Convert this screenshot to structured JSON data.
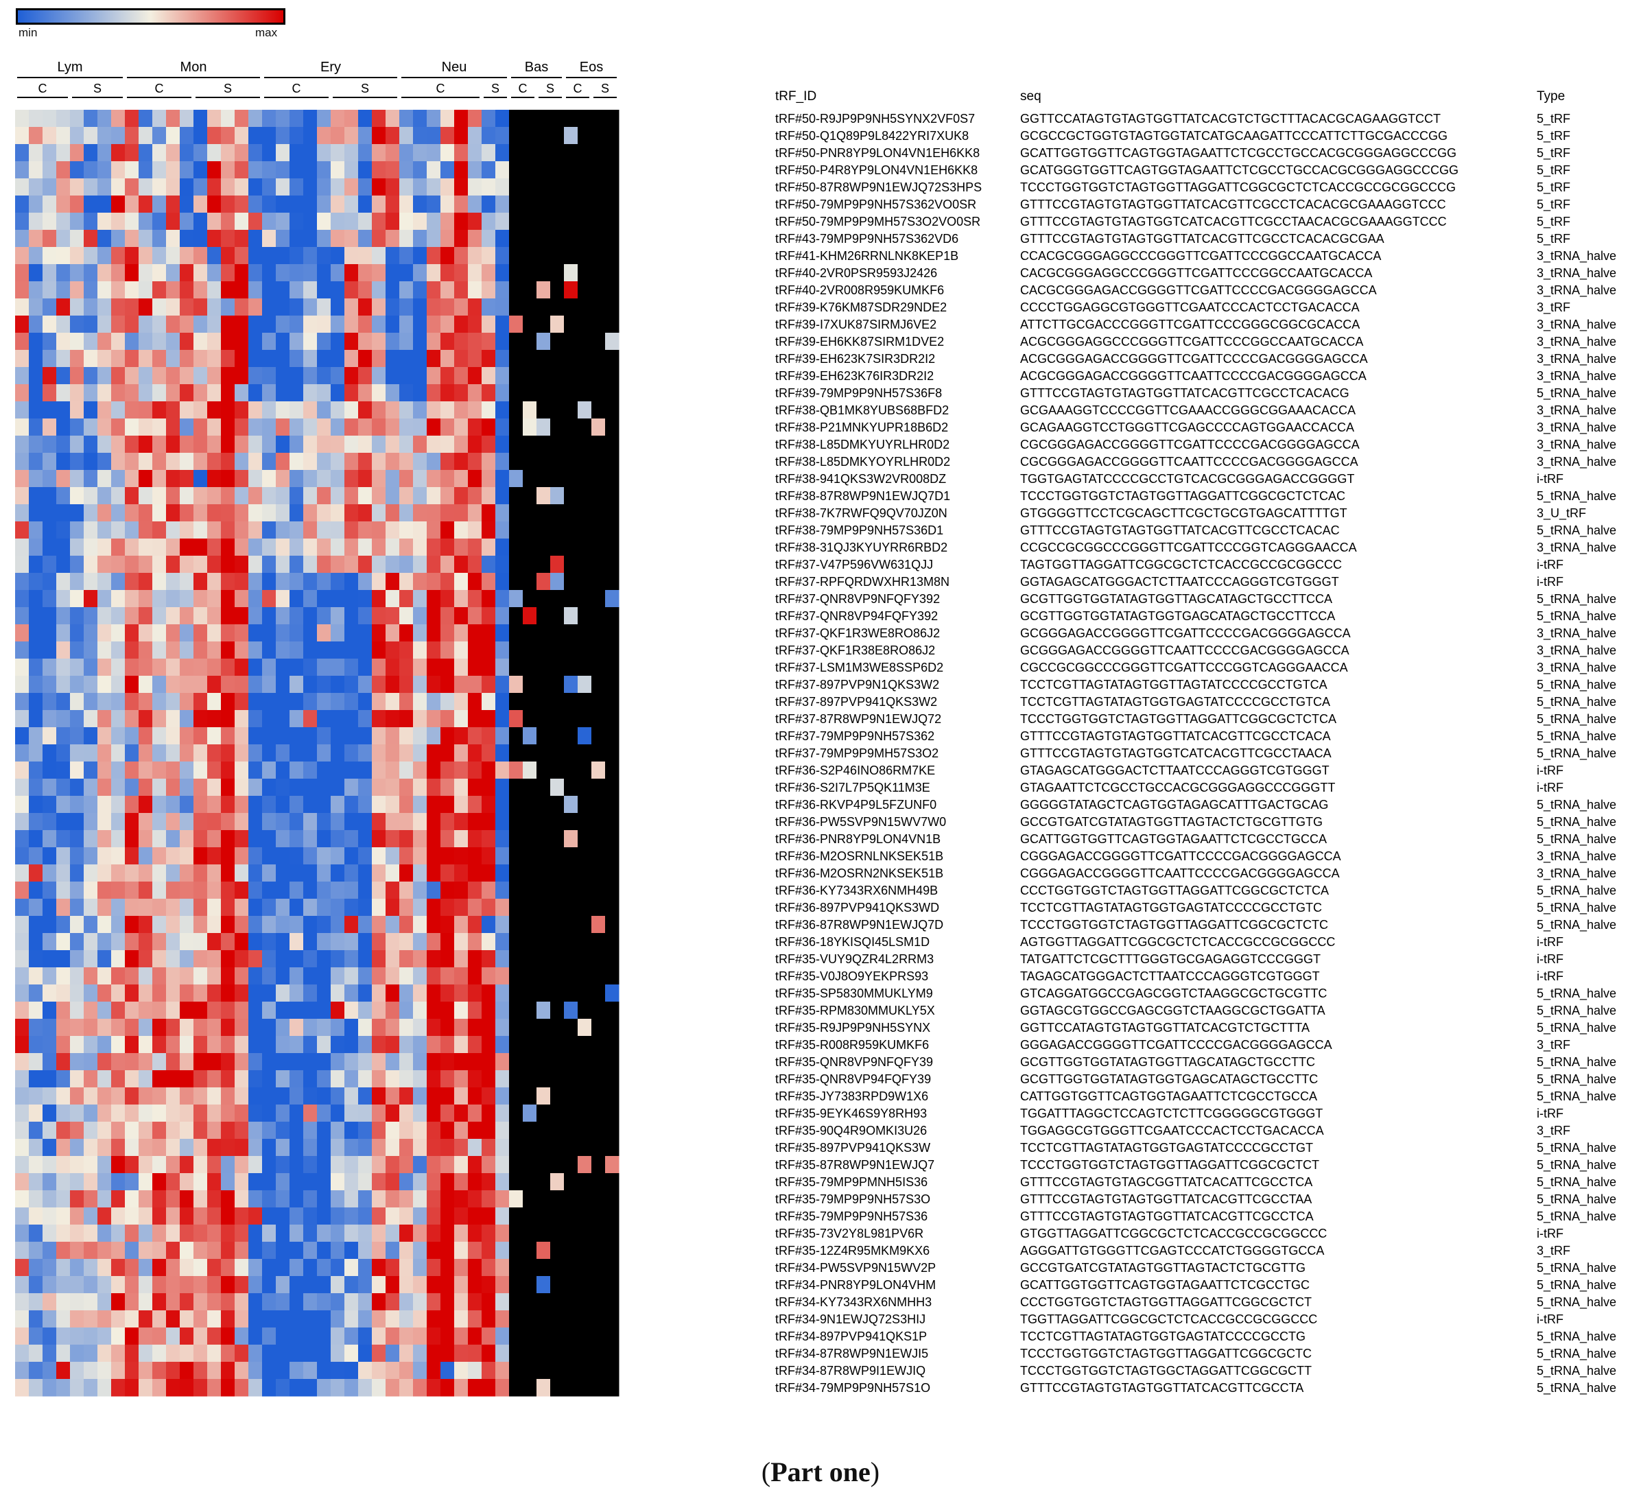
{
  "legend": {
    "min_label": "min",
    "max_label": "max",
    "colors": [
      "#1f5fd6",
      "#f3efe0",
      "#d80000"
    ]
  },
  "caption": {
    "paren_open": "(",
    "text": "Part one",
    "paren_close": ")"
  },
  "chart_data": {
    "type": "heatmap",
    "title": "",
    "color_scale": [
      "min",
      "max"
    ],
    "cell_types": [
      {
        "name": "Lym",
        "groups": [
          {
            "label": "C",
            "n": 4
          },
          {
            "label": "S",
            "n": 4
          }
        ]
      },
      {
        "name": "Mon",
        "groups": [
          {
            "label": "C",
            "n": 5
          },
          {
            "label": "S",
            "n": 5
          }
        ]
      },
      {
        "name": "Ery",
        "groups": [
          {
            "label": "C",
            "n": 5
          },
          {
            "label": "S",
            "n": 5
          }
        ]
      },
      {
        "name": "Neu",
        "groups": [
          {
            "label": "C",
            "n": 6
          },
          {
            "label": "S",
            "n": 2
          }
        ]
      },
      {
        "name": "Bas",
        "groups": [
          {
            "label": "C",
            "n": 2
          },
          {
            "label": "S",
            "n": 2
          }
        ]
      },
      {
        "name": "Eos",
        "groups": [
          {
            "label": "C",
            "n": 2
          },
          {
            "label": "S",
            "n": 2
          }
        ]
      }
    ],
    "columns": {
      "tRF_ID": "tRF_ID",
      "seq": "seq",
      "Type": "Type"
    },
    "rows": [
      {
        "id": "tRF#50-R9JP9P9NH5SYNX2VF0S7",
        "seq": "GGTTCCATAGTGTAGTGGTTATCACGTCTGCTTTACACGCAGAAGGTCCT",
        "type": "5_tRF"
      },
      {
        "id": "tRF#50-Q1Q89P9L8422YRI7XUK8",
        "seq": "GCGCCGCTGGTGTAGTGGTATCATGCAAGATTCCCATTCTTGCGACCCGG",
        "type": "5_tRF"
      },
      {
        "id": "tRF#50-PNR8YP9LON4VN1EH6KK8",
        "seq": "GCATTGGTGGTTCAGTGGTAGAATTCTCGCCTGCCACGCGGGAGGCCCGG",
        "type": "5_tRF"
      },
      {
        "id": "tRF#50-P4R8YP9LON4VN1EH6KK8",
        "seq": "GCATGGGTGGTTCAGTGGTAGAATTCTCGCCTGCCACGCGGGAGGCCCGG",
        "type": "5_tRF"
      },
      {
        "id": "tRF#50-87R8WP9N1EWJQ72S3HPS",
        "seq": "TCCCTGGTGGTCTAGTGGTTAGGATTCGGCGCTCTCACCGCCGCGGCCCG",
        "type": "5_tRF"
      },
      {
        "id": "tRF#50-79MP9P9NH57S362VO0SR",
        "seq": "GTTTCCGTAGTGTAGTGGTTATCACGTTCGCCTCACACGCGAAAGGTCCC",
        "type": "5_tRF"
      },
      {
        "id": "tRF#50-79MP9P9MH57S3O2VO0SR",
        "seq": "GTTTCCGTAGTGTAGTGGTCATCACGTTCGCCTAACACGCGAAAGGTCCC",
        "type": "5_tRF"
      },
      {
        "id": "tRF#43-79MP9P9NH57S362VD6",
        "seq": "GTTTCCGTAGTGTAGTGGTTATCACGTTCGCCTCACACGCGAA",
        "type": "5_tRF"
      },
      {
        "id": "tRF#41-KHM26RRNLNK8KEP1B",
        "seq": "CCACGCGGGAGGCCCGGGTTCGATTCCCGGCCAATGCACCA",
        "type": "3_tRNA_halve"
      },
      {
        "id": "tRF#40-2VR0PSR9593J2426",
        "seq": "CACGCGGGAGGCCCGGGTTCGATTCCCGGCCAATGCACCA",
        "type": "3_tRNA_halve"
      },
      {
        "id": "tRF#40-2VR008R959KUMKF6",
        "seq": "CACGCGGGAGACCGGGGTTCGATTCCCCGACGGGGAGCCA",
        "type": "3_tRNA_halve"
      },
      {
        "id": "tRF#39-K76KM87SDR29NDE2",
        "seq": "CCCCTGGAGGCGTGGGTTCGAATCCCACTCCTGACACCA",
        "type": "3_tRF"
      },
      {
        "id": "tRF#39-I7XUK87SIRMJ6VE2",
        "seq": "ATTCTTGCGACCCGGGTTCGATTCCCGGGCGGCGCACCA",
        "type": "3_tRNA_halve"
      },
      {
        "id": "tRF#39-EH6KK87SIRM1DVE2",
        "seq": "ACGCGGGAGGCCCGGGTTCGATTCCCGGCCAATGCACCA",
        "type": "3_tRNA_halve"
      },
      {
        "id": "tRF#39-EH623K7SIR3DR2I2",
        "seq": "ACGCGGGAGACCGGGGTTCGATTCCCCGACGGGGAGCCA",
        "type": "3_tRNA_halve"
      },
      {
        "id": "tRF#39-EH623K76IR3DR2I2",
        "seq": "ACGCGGGAGACCGGGGTTCAATTCCCCGACGGGGAGCCA",
        "type": "3_tRNA_halve"
      },
      {
        "id": "tRF#39-79MP9P9NH57S36F8",
        "seq": "GTTTCCGTAGTGTAGTGGTTATCACGTTCGCCTCACACG",
        "type": "5_tRNA_halve"
      },
      {
        "id": "tRF#38-QB1MK8YUBS68BFD2",
        "seq": "GCGAAAGGTCCCCGGTTCGAAACCGGGCGGAAACACCA",
        "type": "3_tRNA_halve"
      },
      {
        "id": "tRF#38-P21MNKYUPR18B6D2",
        "seq": "GCAGAAGGTCCTGGGTTCGAGCCCCAGTGGAACCACCA",
        "type": "3_tRNA_halve"
      },
      {
        "id": "tRF#38-L85DMKYUYRLHR0D2",
        "seq": "CGCGGGAGACCGGGGTTCGATTCCCCGACGGGGAGCCA",
        "type": "3_tRNA_halve"
      },
      {
        "id": "tRF#38-L85DMKYOYRLHR0D2",
        "seq": "CGCGGGAGACCGGGGTTCAATTCCCCGACGGGGAGCCA",
        "type": "3_tRNA_halve"
      },
      {
        "id": "tRF#38-941QKS3W2VR008DZ",
        "seq": "TGGTGAGTATCCCCGCCTGTCACGCGGGAGACCGGGGT",
        "type": "i-tRF"
      },
      {
        "id": "tRF#38-87R8WP9N1EWJQ7D1",
        "seq": "TCCCTGGTGGTCTAGTGGTTAGGATTCGGCGCTCTCAC",
        "type": "5_tRNA_halve"
      },
      {
        "id": "tRF#38-7K7RWFQ9QV70JZ0N",
        "seq": "GTGGGGTTCCTCGCAGCTTCGCTGCGTGAGCATTTTGT",
        "type": "3_U_tRF"
      },
      {
        "id": "tRF#38-79MP9P9NH57S36D1",
        "seq": "GTTTCCGTAGTGTAGTGGTTATCACGTTCGCCTCACAC",
        "type": "5_tRNA_halve"
      },
      {
        "id": "tRF#38-31QJ3KYUYRR6RBD2",
        "seq": "CCGCCGCGGCCCGGGTTCGATTCCCGGTCAGGGAACCA",
        "type": "3_tRNA_halve"
      },
      {
        "id": "tRF#37-V47P596VW631QJJ",
        "seq": "TAGTGGTTAGGATTCGGCGCTCTCACCGCCGCGGCCC",
        "type": "i-tRF"
      },
      {
        "id": "tRF#37-RPFQRDWXHR13M8N",
        "seq": "GGTAGAGCATGGGACTCTTAATCCCAGGGTCGTGGGT",
        "type": "i-tRF"
      },
      {
        "id": "tRF#37-QNR8VP9NFQFY392",
        "seq": "GCGTTGGTGGTATAGTGGTTAGCATAGCTGCCTTCCA",
        "type": "5_tRNA_halve"
      },
      {
        "id": "tRF#37-QNR8VP94FQFY392",
        "seq": "GCGTTGGTGGTATAGTGGTGAGCATAGCTGCCTTCCA",
        "type": "5_tRNA_halve"
      },
      {
        "id": "tRF#37-QKF1R3WE8RO86J2",
        "seq": "GCGGGAGACCGGGGTTCGATTCCCCGACGGGGAGCCA",
        "type": "3_tRNA_halve"
      },
      {
        "id": "tRF#37-QKF1R38E8RO86J2",
        "seq": "GCGGGAGACCGGGGTTCAATTCCCCGACGGGGAGCCA",
        "type": "3_tRNA_halve"
      },
      {
        "id": "tRF#37-LSM1M3WE8SSP6D2",
        "seq": "CGCCGCGGCCCGGGTTCGATTCCCGGTCAGGGAACCA",
        "type": "3_tRNA_halve"
      },
      {
        "id": "tRF#37-897PVP9N1QKS3W2",
        "seq": "TCCTCGTTAGTATAGTGGTTAGTATCCCCGCCTGTCA",
        "type": "5_tRNA_halve"
      },
      {
        "id": "tRF#37-897PVP941QKS3W2",
        "seq": "TCCTCGTTAGTATAGTGGTGAGTATCCCCGCCTGTCA",
        "type": "5_tRNA_halve"
      },
      {
        "id": "tRF#37-87R8WP9N1EWJQ72",
        "seq": "TCCCTGGTGGTCTAGTGGTTAGGATTCGGCGCTCTCA",
        "type": "5_tRNA_halve"
      },
      {
        "id": "tRF#37-79MP9P9NH57S362",
        "seq": "GTTTCCGTAGTGTAGTGGTTATCACGTTCGCCTCACA",
        "type": "5_tRNA_halve"
      },
      {
        "id": "tRF#37-79MP9P9MH57S3O2",
        "seq": "GTTTCCGTAGTGTAGTGGTCATCACGTTCGCCTAACA",
        "type": "5_tRNA_halve"
      },
      {
        "id": "tRF#36-S2P46INO86RM7KE",
        "seq": "GTAGAGCATGGGACTCTTAATCCCAGGGTCGTGGGT",
        "type": "i-tRF"
      },
      {
        "id": "tRF#36-S2I7L7P5QK11M3E",
        "seq": "GTAGAATTCTCGCCTGCCACGCGGGAGGCCCGGGTT",
        "type": "i-tRF"
      },
      {
        "id": "tRF#36-RKVP4P9L5FZUNF0",
        "seq": "GGGGGTATAGCTCAGTGGTAGAGCATTTGACTGCAG",
        "type": "5_tRNA_halve"
      },
      {
        "id": "tRF#36-PW5SVP9N15WV7W0",
        "seq": "GCCGTGATCGTATAGTGGTTAGTACTCTGCGTTGTG",
        "type": "5_tRNA_halve"
      },
      {
        "id": "tRF#36-PNR8YP9LON4VN1B",
        "seq": "GCATTGGTGGTTCAGTGGTAGAATTCTCGCCTGCCA",
        "type": "5_tRNA_halve"
      },
      {
        "id": "tRF#36-M2OSRNLNKSEK51B",
        "seq": "CGGGAGACCGGGGTTCGATTCCCCGACGGGGAGCCA",
        "type": "3_tRNA_halve"
      },
      {
        "id": "tRF#36-M2OSRN2NKSEK51B",
        "seq": "CGGGAGACCGGGGTTCAATTCCCCGACGGGGAGCCA",
        "type": "3_tRNA_halve"
      },
      {
        "id": "tRF#36-KY7343RX6NMH49B",
        "seq": "CCCTGGTGGTCTAGTGGTTAGGATTCGGCGCTCTCA",
        "type": "5_tRNA_halve"
      },
      {
        "id": "tRF#36-897PVP941QKS3WD",
        "seq": "TCCTCGTTAGTATAGTGGTGAGTATCCCCGCCTGTC",
        "type": "5_tRNA_halve"
      },
      {
        "id": "tRF#36-87R8WP9N1EWJQ7D",
        "seq": "TCCCTGGTGGTCTAGTGGTTAGGATTCGGCGCTCTC",
        "type": "5_tRNA_halve"
      },
      {
        "id": "tRF#36-18YKISQI45LSM1D",
        "seq": "AGTGGTTAGGATTCGGCGCTCTCACCGCCGCGGCCC",
        "type": "i-tRF"
      },
      {
        "id": "tRF#35-VUY9QZR4L2RRM3",
        "seq": "TATGATTCTCGCTTTGGGTGCGAGAGGTCCCGGGT",
        "type": "i-tRF"
      },
      {
        "id": "tRF#35-V0J8O9YEKPRS93",
        "seq": "TAGAGCATGGGACTCTTAATCCCAGGGTCGTGGGT",
        "type": "i-tRF"
      },
      {
        "id": "tRF#35-SP5830MMUKLYM9",
        "seq": "GTCAGGATGGCCGAGCGGTCTAAGGCGCTGCGTTC",
        "type": "5_tRNA_halve"
      },
      {
        "id": "tRF#35-RPM830MMUKLY5X",
        "seq": "GGTAGCGTGGCCGAGCGGTCTAAGGCGCTGGATTA",
        "type": "5_tRNA_halve"
      },
      {
        "id": "tRF#35-R9JP9P9NH5SYNX",
        "seq": "GGTTCCATAGTGTAGTGGTTATCACGTCTGCTTTA",
        "type": "5_tRNA_halve"
      },
      {
        "id": "tRF#35-R008R959KUMKF6",
        "seq": "GGGAGACCGGGGTTCGATTCCCCGACGGGGAGCCA",
        "type": "3_tRF"
      },
      {
        "id": "tRF#35-QNR8VP9NFQFY39",
        "seq": "GCGTTGGTGGTATAGTGGTTAGCATAGCTGCCTTC",
        "type": "5_tRNA_halve"
      },
      {
        "id": "tRF#35-QNR8VP94FQFY39",
        "seq": "GCGTTGGTGGTATAGTGGTGAGCATAGCTGCCTTC",
        "type": "5_tRNA_halve"
      },
      {
        "id": "tRF#35-JY7383RPD9W1X6",
        "seq": "CATTGGTGGTTCAGTGGTAGAATTCTCGCCTGCCA",
        "type": "5_tRNA_halve"
      },
      {
        "id": "tRF#35-9EYK46S9Y8RH93",
        "seq": "TGGATTTAGGCTCCAGTCTCTTCGGGGGCGTGGGT",
        "type": "i-tRF"
      },
      {
        "id": "tRF#35-90Q4R9OMKI3U26",
        "seq": "TGGAGGCGTGGGTTCGAATCCCACTCCTGACACCA",
        "type": "3_tRF"
      },
      {
        "id": "tRF#35-897PVP941QKS3W",
        "seq": "TCCTCGTTAGTATAGTGGTGAGTATCCCCGCCTGT",
        "type": "5_tRNA_halve"
      },
      {
        "id": "tRF#35-87R8WP9N1EWJQ7",
        "seq": "TCCCTGGTGGTCTAGTGGTTAGGATTCGGCGCTCT",
        "type": "5_tRNA_halve"
      },
      {
        "id": "tRF#35-79MP9PMNH5IS36",
        "seq": "GTTTCCGTAGTGTAGCGGTTATCACATTCGCCTCA",
        "type": "5_tRNA_halve"
      },
      {
        "id": "tRF#35-79MP9P9NH57S3O",
        "seq": "GTTTCCGTAGTGTAGTGGTTATCACGTTCGCCTAA",
        "type": "5_tRNA_halve"
      },
      {
        "id": "tRF#35-79MP9P9NH57S36",
        "seq": "GTTTCCGTAGTGTAGTGGTTATCACGTTCGCCTCA",
        "type": "5_tRNA_halve"
      },
      {
        "id": "tRF#35-73V2Y8L981PV6R",
        "seq": "GTGGTTAGGATTCGGCGCTCTCACCGCCGCGGCCC",
        "type": "i-tRF"
      },
      {
        "id": "tRF#35-12Z4R95MKM9KX6",
        "seq": "AGGGATTGTGGGTTCGAGTCCCATCTGGGGTGCCA",
        "type": "3_tRF"
      },
      {
        "id": "tRF#34-PW5SVP9N15WV2P",
        "seq": "GCCGTGATCGTATAGTGGTTAGTACTCTGCGTTG",
        "type": "5_tRNA_halve"
      },
      {
        "id": "tRF#34-PNR8YP9LON4VHM",
        "seq": "GCATTGGTGGTTCAGTGGTAGAATTCTCGCCTGC",
        "type": "5_tRNA_halve"
      },
      {
        "id": "tRF#34-KY7343RX6NMHH3",
        "seq": "CCCTGGTGGTCTAGTGGTTAGGATTCGGCGCTCT",
        "type": "5_tRNA_halve"
      },
      {
        "id": "tRF#34-9N1EWJQ72S3HIJ",
        "seq": "TGGTTAGGATTCGGCGCTCTCACCGCCGCGGCCC",
        "type": "i-tRF"
      },
      {
        "id": "tRF#34-897PVP941QKS1P",
        "seq": "TCCTCGTTAGTATAGTGGTGAGTATCCCCGCCTG",
        "type": "5_tRNA_halve"
      },
      {
        "id": "tRF#34-87R8WP9N1EWJI5",
        "seq": "TCCCTGGTGGTCTAGTGGTTAGGATTCGGCGCTC",
        "type": "5_tRNA_halve"
      },
      {
        "id": "tRF#34-87R8WP9I1EWJIQ",
        "seq": "TCCCTGGTGGTCTAGTGGCTAGGATTCGGCGCTT",
        "type": "5_tRNA_halve"
      },
      {
        "id": "tRF#34-79MP9P9NH57S1O",
        "seq": "GTTTCCGTAGTGTAGTGGTTATCACGTTCGCCTA",
        "type": "5_tRNA_halve"
      }
    ],
    "cluster_profiles": {
      "0-7": [
        1,
        2,
        2,
        2,
        2,
        1,
        1,
        3,
        3,
        1,
        1,
        3,
        1,
        0,
        3,
        3,
        3,
        0,
        0,
        1,
        0,
        0,
        1,
        2,
        2,
        0,
        3,
        3,
        1,
        1,
        1,
        3,
        4,
        2,
        1,
        1
      ],
      "8-16": [
        2,
        0,
        1,
        1,
        2,
        1,
        2,
        3,
        3,
        2,
        2,
        2,
        3,
        3,
        2,
        4,
        4,
        0,
        0,
        0,
        0,
        1,
        1,
        0,
        3,
        3,
        2,
        0,
        0,
        0,
        3,
        3,
        3,
        3,
        3,
        0
      ],
      "17-26": [
        2,
        0,
        0,
        0,
        1,
        1,
        2,
        2,
        3,
        3,
        3,
        3,
        3,
        3,
        3,
        4,
        3,
        2,
        1,
        2,
        1,
        2,
        2,
        2,
        3,
        3,
        2,
        2,
        2,
        2,
        3,
        3,
        3,
        3,
        3,
        0
      ],
      "27-49": [
        1,
        0,
        0,
        1,
        1,
        1,
        2,
        2,
        3,
        3,
        2,
        2,
        2,
        3,
        3,
        4,
        3,
        0,
        0,
        0,
        0,
        0,
        0,
        0,
        0,
        0,
        3,
        3,
        3,
        2,
        4,
        4,
        3,
        4,
        4,
        0
      ],
      "50-74": [
        2,
        1,
        1,
        2,
        2,
        2,
        2,
        3,
        3,
        2,
        3,
        3,
        3,
        3,
        3,
        4,
        3,
        0,
        0,
        0,
        0,
        0,
        0,
        1,
        1,
        1,
        3,
        3,
        2,
        2,
        4,
        4,
        3,
        4,
        4,
        2
      ]
    }
  }
}
